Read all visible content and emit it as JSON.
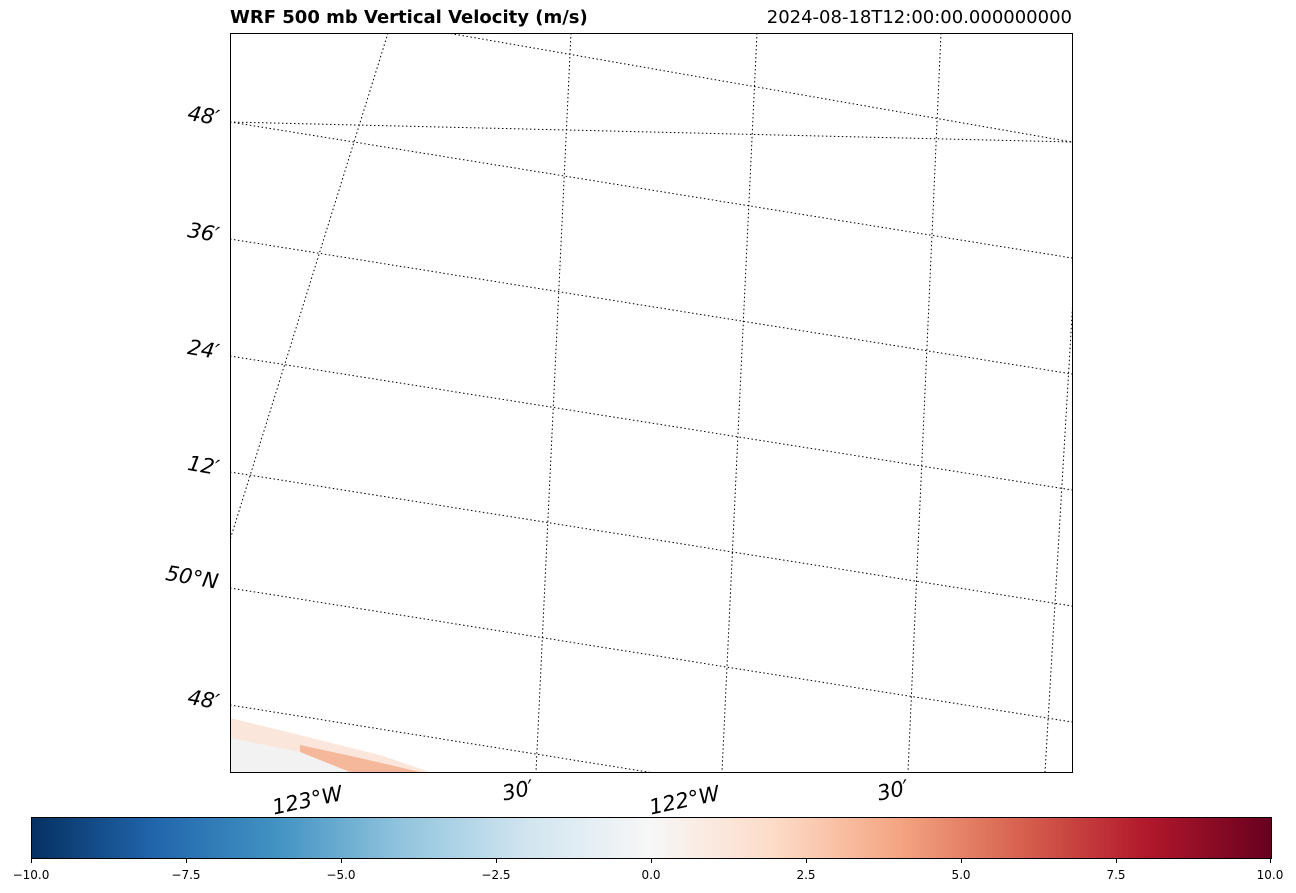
{
  "title": "WRF 500 mb Vertical Velocity (m/s)",
  "timestamp": "2024-08-18T12:00:00.000000000",
  "map": {
    "projection": "rotated",
    "gridline_style": "dotted",
    "gridline_color": "#000000",
    "lat_labels": [
      "48′",
      "36′",
      "24′",
      "12′",
      "50°N",
      "48′"
    ],
    "lon_labels": [
      "123°W",
      "30′",
      "122°W",
      "30′"
    ],
    "field": "vertical_velocity_500mb",
    "field_note_visible": "weak positive values (~1–2 m/s) in lower-left corner"
  },
  "colorbar": {
    "colormap": "RdBu_r",
    "min": -10.0,
    "max": 10.0,
    "ticks": [
      "−10.0",
      "−7.5",
      "−5.0",
      "−2.5",
      "0.0",
      "2.5",
      "5.0",
      "7.5",
      "10.0"
    ],
    "colors": [
      "#053061",
      "#2166ac",
      "#4393c3",
      "#92c5de",
      "#d1e5f0",
      "#f7f7f7",
      "#fddbc7",
      "#f4a582",
      "#d6604d",
      "#b2182b",
      "#67001f"
    ]
  }
}
